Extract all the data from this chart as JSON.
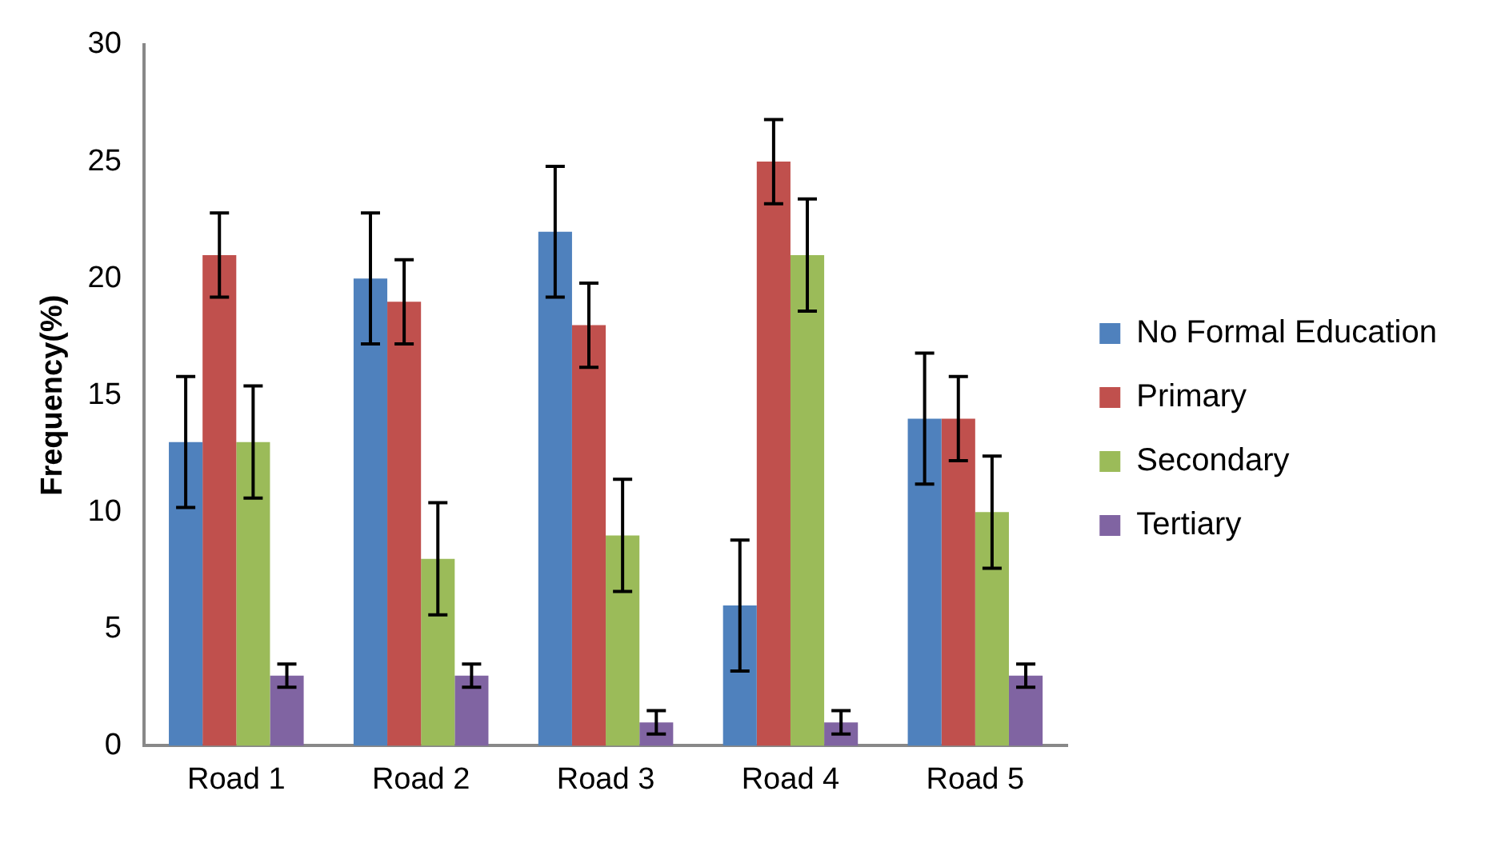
{
  "chart_data": {
    "type": "bar",
    "ylabel": "Frequency(%)",
    "categories": [
      "Road 1",
      "Road 2",
      "Road 3",
      "Road 4",
      "Road 5"
    ],
    "series": [
      {
        "name": "No Formal Education",
        "color": "#4f81bd",
        "values": [
          13,
          20,
          22,
          6,
          14
        ],
        "errors": [
          2.8,
          2.8,
          2.8,
          2.8,
          2.8
        ]
      },
      {
        "name": "Primary",
        "color": "#c0504d",
        "values": [
          21,
          19,
          18,
          25,
          14
        ],
        "errors": [
          1.8,
          1.8,
          1.8,
          1.8,
          1.8
        ]
      },
      {
        "name": "Secondary",
        "color": "#9bbb59",
        "values": [
          13,
          8,
          9,
          21,
          10
        ],
        "errors": [
          2.4,
          2.4,
          2.4,
          2.4,
          2.4
        ]
      },
      {
        "name": "Tertiary",
        "color": "#8064a2",
        "values": [
          3,
          3,
          1,
          1,
          3
        ],
        "errors": [
          0.5,
          0.5,
          0.5,
          0.5,
          0.5
        ]
      }
    ],
    "ylim": [
      0,
      30
    ],
    "yticks": [
      0,
      5,
      10,
      15,
      20,
      25,
      30
    ],
    "grid": false,
    "legend": "right"
  }
}
